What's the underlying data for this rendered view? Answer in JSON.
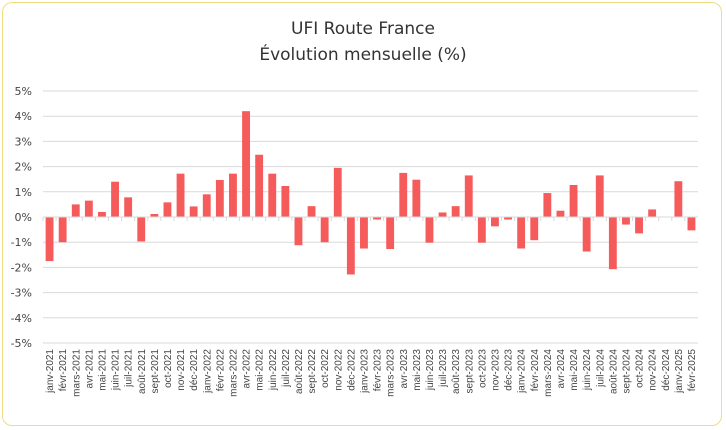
{
  "chart_data": {
    "type": "bar",
    "title": "UFI Route France",
    "subtitle": "Évolution mensuelle (%)",
    "xlabel": "",
    "ylabel": "",
    "ylim": [
      -5,
      5
    ],
    "yticks": [
      "5%",
      "4%",
      "3%",
      "2%",
      "1%",
      "0%",
      "-1%",
      "-2%",
      "-3%",
      "-4%",
      "-5%"
    ],
    "ytick_values": [
      5,
      4,
      3,
      2,
      1,
      0,
      -1,
      -2,
      -3,
      -4,
      -5
    ],
    "grid": true,
    "bar_color": "#f55b5b",
    "categories": [
      "janv-2021",
      "févr-2021",
      "mars-2021",
      "avr-2021",
      "mai-2021",
      "juin-2021",
      "juil-2021",
      "août-2021",
      "sept-2021",
      "oct-2021",
      "nov-2021",
      "déc-2021",
      "janv-2022",
      "févr-2022",
      "mars-2022",
      "avr-2022",
      "mai-2022",
      "juin-2022",
      "juil-2022",
      "août-2022",
      "sept-2022",
      "oct-2022",
      "nov-2022",
      "déc-2022",
      "janv-2023",
      "févr-2023",
      "mars-2023",
      "avr-2023",
      "mai-2023",
      "juin-2023",
      "juil-2023",
      "août-2023",
      "sept-2023",
      "oct-2023",
      "nov-2023",
      "déc-2023",
      "janv-2024",
      "févr-2024",
      "mars-2024",
      "avr-2024",
      "mai-2024",
      "juin-2024",
      "juil-2024",
      "août-2024",
      "sept-2024",
      "oct-2024",
      "nov-2024",
      "déc-2024",
      "janv-2025",
      "févr-2025"
    ],
    "values": [
      -1.75,
      -1.0,
      0.5,
      0.65,
      0.2,
      1.4,
      0.78,
      -0.97,
      0.12,
      0.58,
      1.72,
      0.42,
      0.9,
      1.47,
      1.72,
      4.2,
      2.47,
      1.72,
      1.23,
      -1.12,
      0.43,
      -1.0,
      1.95,
      -2.28,
      -1.25,
      -0.1,
      -1.27,
      1.75,
      1.48,
      -1.02,
      0.18,
      0.43,
      1.65,
      -1.02,
      -0.37,
      -0.1,
      -1.25,
      -0.92,
      0.95,
      0.25,
      1.27,
      -1.37,
      1.65,
      -2.07,
      -0.3,
      -0.65,
      0.3,
      0.0,
      1.42,
      -0.53
    ]
  }
}
